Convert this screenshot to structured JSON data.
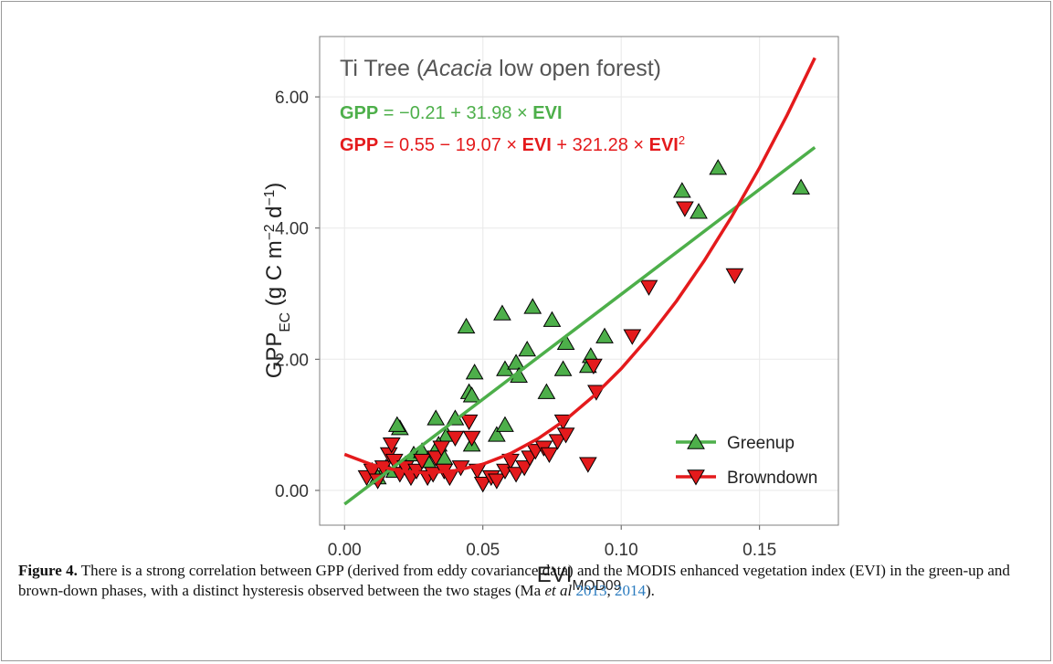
{
  "chart_data": {
    "type": "scatter",
    "title_parts": [
      {
        "text": "Ti Tree ("
      },
      {
        "text": "Acacia",
        "italic": true
      },
      {
        "text": " low open forest)"
      }
    ],
    "equations": [
      [
        {
          "text": "GPP",
          "bold": true
        },
        {
          "text": " = −0.21 + 31.98 × "
        },
        {
          "text": "EVI",
          "bold": true
        }
      ],
      [
        {
          "text": "GPP",
          "bold": true
        },
        {
          "text": " = 0.55 − 19.07 × "
        },
        {
          "text": "EVI",
          "bold": true
        },
        {
          "text": " + 321.28 × "
        },
        {
          "text": "EVI",
          "bold": true
        },
        {
          "text": "2",
          "sup": true
        }
      ]
    ],
    "x_label_parts": [
      {
        "text": "EVI"
      },
      {
        "text": "MOD09",
        "sub": true
      }
    ],
    "y_label_parts": [
      {
        "text": "GPP"
      },
      {
        "text": "EC",
        "sub": true
      },
      {
        "text": " (g C m"
      },
      {
        "text": "−2",
        "sup": true
      },
      {
        "text": " d"
      },
      {
        "text": "−1",
        "sup": true
      },
      {
        "text": ")"
      }
    ],
    "xlim": [
      -0.009,
      0.1785
    ],
    "ylim": [
      -0.53,
      6.92
    ],
    "xticks": [
      {
        "value": 0,
        "label": "0.00"
      },
      {
        "value": 0.05,
        "label": "0.05"
      },
      {
        "value": 0.1,
        "label": "0.10"
      },
      {
        "value": 0.15,
        "label": "0.15"
      }
    ],
    "yticks": [
      {
        "value": 0,
        "label": "0.00"
      },
      {
        "value": 2,
        "label": "2.00"
      },
      {
        "value": 4,
        "label": "4.00"
      },
      {
        "value": 6,
        "label": "6.00"
      }
    ],
    "grid": true,
    "legend": "bottom-right",
    "series": [
      {
        "name": "Greenup",
        "color": "#4daf4a",
        "marker": "triangle-up",
        "x": [
          0.02,
          0.019,
          0.033,
          0.037,
          0.04,
          0.044,
          0.045,
          0.046,
          0.047,
          0.046,
          0.055,
          0.057,
          0.058,
          0.058,
          0.062,
          0.063,
          0.066,
          0.068,
          0.073,
          0.075,
          0.079,
          0.08,
          0.088,
          0.089,
          0.094,
          0.122,
          0.128,
          0.135,
          0.165,
          0.01,
          0.015,
          0.022,
          0.025,
          0.028,
          0.03,
          0.034,
          0.036,
          0.012,
          0.018
        ],
        "values": [
          0.95,
          1.0,
          1.1,
          0.85,
          1.1,
          2.5,
          1.5,
          1.45,
          1.8,
          0.7,
          0.85,
          2.7,
          1.85,
          1.0,
          1.95,
          1.75,
          2.15,
          2.8,
          1.5,
          2.6,
          1.85,
          2.25,
          1.9,
          2.05,
          2.35,
          4.57,
          4.25,
          4.92,
          4.62,
          0.3,
          0.35,
          0.4,
          0.55,
          0.6,
          0.45,
          0.7,
          0.5,
          0.2,
          0.3
        ],
        "fit_x": [
          0,
          0.17
        ],
        "fit_values": [
          -0.21,
          5.23
        ]
      },
      {
        "name": "Browndown",
        "color": "#e41a1c",
        "marker": "triangle-down",
        "x": [
          0.008,
          0.01,
          0.012,
          0.014,
          0.016,
          0.017,
          0.018,
          0.02,
          0.022,
          0.024,
          0.026,
          0.028,
          0.03,
          0.032,
          0.033,
          0.035,
          0.036,
          0.038,
          0.04,
          0.042,
          0.045,
          0.046,
          0.048,
          0.05,
          0.053,
          0.055,
          0.058,
          0.06,
          0.062,
          0.065,
          0.067,
          0.069,
          0.072,
          0.074,
          0.077,
          0.079,
          0.08,
          0.088,
          0.09,
          0.091,
          0.104,
          0.11,
          0.123,
          0.141
        ],
        "values": [
          0.2,
          0.3,
          0.15,
          0.35,
          0.55,
          0.7,
          0.45,
          0.25,
          0.35,
          0.2,
          0.3,
          0.45,
          0.2,
          0.25,
          0.5,
          0.65,
          0.3,
          0.2,
          0.8,
          0.35,
          1.05,
          0.8,
          0.3,
          0.1,
          0.2,
          0.15,
          0.3,
          0.45,
          0.25,
          0.35,
          0.5,
          0.6,
          0.65,
          0.55,
          0.75,
          1.05,
          0.85,
          0.4,
          1.9,
          1.5,
          2.35,
          3.1,
          4.3,
          3.28
        ],
        "fit_x": [
          0,
          0.01,
          0.02,
          0.03,
          0.04,
          0.05,
          0.06,
          0.07,
          0.08,
          0.09,
          0.1,
          0.11,
          0.12,
          0.13,
          0.14,
          0.15,
          0.16,
          0.17
        ],
        "fit_values": [
          0.55,
          0.391,
          0.297,
          0.267,
          0.302,
          0.4,
          0.563,
          0.791,
          1.081,
          1.437,
          1.856,
          2.34,
          2.888,
          3.501,
          4.178,
          4.919,
          5.725,
          6.595
        ]
      }
    ]
  },
  "caption": [
    {
      "text": "Figure 4.",
      "bold": true
    },
    {
      "text": " There is a strong correlation between GPP (derived from eddy covariance data) and the MODIS enhanced vegetation index (EVI) in the green-up and brown-down phases, with a distinct hysteresis observed between the two stages (Ma "
    },
    {
      "text": "et al",
      "italic": true
    },
    {
      "text": " "
    },
    {
      "text": "2013",
      "link": true
    },
    {
      "text": ", "
    },
    {
      "text": "2014",
      "link": true
    },
    {
      "text": ")."
    }
  ]
}
